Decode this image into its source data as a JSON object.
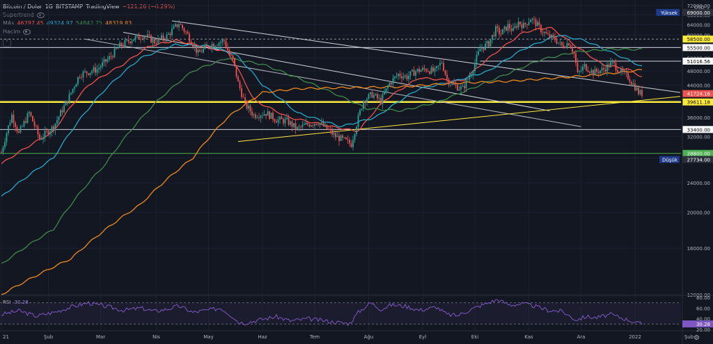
{
  "header": {
    "symbol": "Bitcoin / Dolar",
    "interval": "1G",
    "exchange": "BITSTAMP",
    "source": "TradingView",
    "change": "−121.26 (−0.29%)",
    "indicator1": "Supertrend",
    "ma_label": "MAs",
    "ma_values": [
      "46297.45",
      "49324.97",
      "54842.75",
      "48319.83"
    ],
    "volume_label": "Hacim",
    "collapse_glyph": "˄"
  },
  "rsi": {
    "label": "RSI",
    "value": "30.28"
  },
  "colors": {
    "bg": "#131722",
    "up": "#26a69a",
    "down": "#ef5350",
    "ma20": "#f0524a",
    "ma50": "#26a8c8",
    "ma100": "#3f8a4a",
    "ma200": "#f08a1c",
    "rsi": "#7e57c2",
    "yellow": "#ffeb3b",
    "grid": "#1c2030",
    "axisText": "#b2b5be"
  },
  "chart_data": [
    {
      "type": "line",
      "scale": "log",
      "ylim": [
        12000,
        72000
      ],
      "currency": "USD",
      "y_ticks": [
        72000,
        68000,
        64000,
        60000,
        56000,
        52000,
        48000,
        44000,
        40000,
        36000,
        32000,
        28000,
        24000,
        20000,
        16000,
        12000
      ],
      "x_labels": [
        "21",
        "Şub",
        "Mar",
        "Nis",
        "May",
        "Haz",
        "Tem",
        "Ağu",
        "Eyl",
        "Eki",
        "Kas",
        "Ara",
        "2022",
        "Şub"
      ],
      "ohlc_anchor_closes": [
        [
          0,
          29000
        ],
        [
          6,
          36500
        ],
        [
          10,
          32500
        ],
        [
          16,
          37000
        ],
        [
          22,
          31500
        ],
        [
          30,
          34000
        ],
        [
          38,
          40000
        ],
        [
          45,
          47000
        ],
        [
          55,
          48500
        ],
        [
          62,
          52000
        ],
        [
          68,
          56000
        ],
        [
          75,
          58500
        ],
        [
          82,
          60000
        ],
        [
          88,
          57500
        ],
        [
          95,
          59500
        ],
        [
          102,
          64500
        ],
        [
          107,
          60000
        ],
        [
          113,
          53500
        ],
        [
          120,
          56500
        ],
        [
          126,
          57500
        ],
        [
          128,
          58000
        ],
        [
          131,
          53000
        ],
        [
          133,
          51500
        ],
        [
          136,
          44500
        ],
        [
          140,
          39000
        ],
        [
          145,
          36500
        ],
        [
          152,
          37000
        ],
        [
          158,
          35500
        ],
        [
          164,
          35200
        ],
        [
          170,
          33500
        ],
        [
          176,
          34500
        ],
        [
          182,
          35000
        ],
        [
          187,
          33500
        ],
        [
          192,
          32000
        ],
        [
          197,
          31200
        ],
        [
          201,
          30500
        ],
        [
          204,
          34500
        ],
        [
          208,
          40000
        ],
        [
          213,
          41500
        ],
        [
          218,
          39800
        ],
        [
          223,
          44500
        ],
        [
          228,
          47000
        ],
        [
          233,
          46300
        ],
        [
          238,
          48000
        ],
        [
          244,
          48500
        ],
        [
          249,
          47800
        ],
        [
          253,
          50800
        ],
        [
          256,
          45500
        ],
        [
          260,
          43800
        ],
        [
          265,
          43000
        ],
        [
          270,
          47500
        ],
        [
          275,
          55000
        ],
        [
          280,
          57000
        ],
        [
          284,
          62000
        ],
        [
          287,
          60500
        ],
        [
          291,
          63500
        ],
        [
          294,
          61500
        ],
        [
          297,
          65000
        ],
        [
          300,
          63500
        ],
        [
          304,
          66500
        ],
        [
          307,
          64500
        ],
        [
          310,
          62000
        ],
        [
          314,
          59500
        ],
        [
          318,
          58500
        ],
        [
          322,
          56000
        ],
        [
          326,
          57300
        ],
        [
          329,
          53500
        ],
        [
          331,
          47000
        ],
        [
          335,
          49500
        ],
        [
          340,
          47500
        ],
        [
          346,
          48500
        ],
        [
          351,
          50500
        ],
        [
          356,
          47500
        ],
        [
          360,
          46300
        ],
        [
          364,
          43500
        ],
        [
          366,
          42000
        ],
        [
          368,
          41724
        ]
      ],
      "series": [
        {
          "name": "MA1",
          "value": 46297.45,
          "anchors": [
            [
              0,
              27000
            ],
            [
              30,
              33000
            ],
            [
              50,
              44000
            ],
            [
              70,
              50000
            ],
            [
              85,
              56000
            ],
            [
              100,
              58000
            ],
            [
              115,
              56000
            ],
            [
              130,
              54000
            ],
            [
              145,
              40000
            ],
            [
              165,
              36000
            ],
            [
              190,
              34000
            ],
            [
              205,
              33000
            ],
            [
              220,
              40000
            ],
            [
              240,
              46000
            ],
            [
              265,
              45000
            ],
            [
              280,
              52000
            ],
            [
              300,
              61000
            ],
            [
              315,
              63000
            ],
            [
              330,
              56000
            ],
            [
              345,
              50000
            ],
            [
              360,
              48500
            ],
            [
              368,
              46297
            ]
          ]
        },
        {
          "name": "MA2",
          "value": 49324.97,
          "anchors": [
            [
              0,
              22000
            ],
            [
              30,
              28000
            ],
            [
              60,
              43000
            ],
            [
              80,
              52000
            ],
            [
              100,
              56500
            ],
            [
              120,
              56000
            ],
            [
              135,
              53000
            ],
            [
              150,
              44000
            ],
            [
              170,
              37000
            ],
            [
              195,
              34000
            ],
            [
              215,
              36000
            ],
            [
              240,
              43000
            ],
            [
              260,
              45000
            ],
            [
              280,
              48000
            ],
            [
              300,
              55000
            ],
            [
              320,
              60000
            ],
            [
              335,
              58000
            ],
            [
              350,
              54000
            ],
            [
              368,
              49325
            ]
          ]
        },
        {
          "name": "MA3",
          "value": 54842.75,
          "anchors": [
            [
              0,
              14500
            ],
            [
              30,
              18000
            ],
            [
              60,
              27000
            ],
            [
              90,
              40000
            ],
            [
              110,
              48000
            ],
            [
              130,
              52000
            ],
            [
              150,
              50000
            ],
            [
              170,
              46000
            ],
            [
              190,
              42000
            ],
            [
              210,
              38000
            ],
            [
              230,
              37500
            ],
            [
              250,
              39500
            ],
            [
              270,
              43000
            ],
            [
              290,
              47000
            ],
            [
              310,
              51500
            ],
            [
              330,
              54000
            ],
            [
              350,
              55000
            ],
            [
              368,
              54843
            ]
          ]
        },
        {
          "name": "MA4",
          "value": 48319.83,
          "anchors": [
            [
              0,
              12000
            ],
            [
              40,
              15000
            ],
            [
              80,
              21000
            ],
            [
              110,
              28000
            ],
            [
              130,
              36000
            ],
            [
              150,
              42000
            ],
            [
              170,
              43000
            ],
            [
              200,
              43300
            ],
            [
              230,
              43500
            ],
            [
              260,
              44500
            ],
            [
              290,
              45000
            ],
            [
              320,
              46000
            ],
            [
              345,
              47000
            ],
            [
              368,
              48320
            ]
          ]
        }
      ],
      "price_tags": [
        {
          "value": 69000.0,
          "text": "69000.00",
          "label": "Yüksek",
          "style": "dark"
        },
        {
          "value": 58500.0,
          "text": "58500.00",
          "style": "yellow"
        },
        {
          "value": 55500.0,
          "text": "55500.00",
          "style": "white"
        },
        {
          "value": 51016.56,
          "text": "51016.56",
          "style": "white"
        },
        {
          "value": 41724.16,
          "text": "41724.16",
          "style": "red"
        },
        {
          "value": 39611.18,
          "text": "39611.18",
          "style": "yellow"
        },
        {
          "value": 33400.0,
          "text": "33400.00",
          "style": "white"
        },
        {
          "value": 28800.0,
          "text": "28800.00",
          "style": "green"
        },
        {
          "value": 27734.0,
          "text": "27734.00",
          "label": "Düşük",
          "style": "dark"
        }
      ],
      "horizontal_levels": [
        {
          "value": 58500,
          "style": "dashed"
        },
        {
          "value": 55500,
          "style": "solid-white"
        },
        {
          "value": 51016.56,
          "style": "segment-white",
          "from_day": 275
        },
        {
          "value": 39611.18,
          "style": "thick-yellow"
        },
        {
          "value": 33400,
          "style": "solid-white"
        },
        {
          "value": 28800,
          "style": "solid-green"
        }
      ],
      "trendlines": [
        {
          "from": [
            98,
            65500
          ],
          "to": [
            390,
            42000
          ],
          "color": "#d1d4dc"
        },
        {
          "from": [
            70,
            61000
          ],
          "to": [
            315,
            37500
          ],
          "color": "#d1d4dc"
        },
        {
          "from": [
            48,
            58500
          ],
          "to": [
            333,
            34000
          ],
          "color": "#b2b5be"
        },
        {
          "from": [
            136,
            31000
          ],
          "to": [
            390,
            41000
          ],
          "color": "#ffeb3b"
        }
      ]
    },
    {
      "type": "line",
      "title": "RSI",
      "ylim": [
        20,
        80
      ],
      "y_ticks": [
        80,
        60,
        40,
        20
      ],
      "bands": [
        30,
        70
      ],
      "series": [
        {
          "name": "RSI",
          "value": 30.28,
          "anchors": [
            [
              0,
              48
            ],
            [
              10,
              55
            ],
            [
              20,
              45
            ],
            [
              30,
              52
            ],
            [
              40,
              62
            ],
            [
              50,
              70
            ],
            [
              55,
              66
            ],
            [
              62,
              62
            ],
            [
              70,
              56
            ],
            [
              80,
              60
            ],
            [
              88,
              54
            ],
            [
              95,
              58
            ],
            [
              102,
              64
            ],
            [
              110,
              52
            ],
            [
              118,
              56
            ],
            [
              126,
              60
            ],
            [
              133,
              44
            ],
            [
              136,
              34
            ],
            [
              140,
              32
            ],
            [
              148,
              38
            ],
            [
              158,
              44
            ],
            [
              166,
              36
            ],
            [
              176,
              40
            ],
            [
              186,
              36
            ],
            [
              194,
              33
            ],
            [
              200,
              31
            ],
            [
              205,
              52
            ],
            [
              212,
              70
            ],
            [
              218,
              58
            ],
            [
              224,
              66
            ],
            [
              232,
              64
            ],
            [
              240,
              56
            ],
            [
              250,
              62
            ],
            [
              256,
              48
            ],
            [
              262,
              46
            ],
            [
              270,
              58
            ],
            [
              278,
              68
            ],
            [
              285,
              76
            ],
            [
              292,
              66
            ],
            [
              300,
              68
            ],
            [
              306,
              64
            ],
            [
              314,
              56
            ],
            [
              322,
              54
            ],
            [
              330,
              38
            ],
            [
              336,
              44
            ],
            [
              342,
              42
            ],
            [
              350,
              48
            ],
            [
              356,
              42
            ],
            [
              362,
              36
            ],
            [
              366,
              31
            ],
            [
              368,
              30.28
            ]
          ]
        }
      ]
    }
  ]
}
